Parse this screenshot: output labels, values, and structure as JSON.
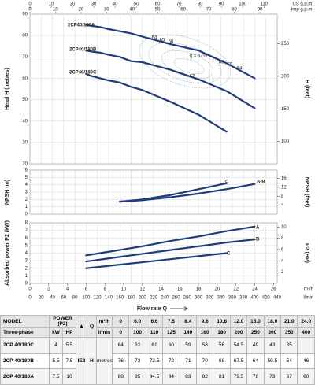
{
  "x_axis": {
    "label": "Flow rate Q",
    "unit": "l/min",
    "lim": [
      0,
      440
    ],
    "ticks": [
      0,
      20,
      40,
      60,
      80,
      100,
      120,
      140,
      160,
      180,
      200,
      220,
      240,
      260,
      280,
      300,
      320,
      340,
      360,
      380,
      400,
      420,
      440
    ],
    "unit2": "m³/h",
    "lim2": [
      0,
      26.4
    ],
    "ticks2": [
      0,
      2,
      4,
      6,
      8,
      10,
      12,
      14,
      16,
      18,
      20,
      22,
      24,
      26
    ]
  },
  "chart_data": [
    {
      "type": "line",
      "y_label": "Head H (metres)",
      "y2_label": "H (feet)",
      "x": [
        100,
        110,
        125,
        140,
        160,
        180,
        200,
        250,
        300,
        350,
        400
      ],
      "ylim": [
        20,
        90
      ],
      "yticks": [
        20,
        30,
        40,
        50,
        60,
        70,
        80,
        90
      ],
      "y2lim": [
        65.6,
        295.3
      ],
      "y2ticks": [
        100,
        150,
        200,
        250
      ],
      "grid": true,
      "top_axes": [
        {
          "unit": "US g.p.m.",
          "lim": [
            0,
            116.2
          ],
          "ticks": [
            0,
            10,
            20,
            30,
            40,
            50,
            60,
            70,
            80,
            90,
            100,
            110
          ]
        },
        {
          "unit": "Imp g.p.m.",
          "lim": [
            0,
            96.8
          ],
          "ticks": [
            0,
            10,
            20,
            30,
            40,
            50,
            60,
            70,
            80,
            90
          ]
        }
      ],
      "series": [
        {
          "name": "2CP40/180A",
          "color": "#1d3c78",
          "values": [
            85,
            84.5,
            84,
            83,
            82,
            81,
            79.5,
            76,
            73,
            67,
            60
          ]
        },
        {
          "name": "2CP40/180B",
          "color": "#1d3c78",
          "values": [
            73,
            72.5,
            72,
            71,
            70,
            68,
            67.5,
            64,
            59.5,
            54,
            46
          ]
        },
        {
          "name": "2CP40/180C",
          "color": "#1d3c78",
          "values": [
            62,
            61,
            60,
            59,
            58,
            56,
            54.5,
            49,
            43,
            35,
            null
          ]
        }
      ],
      "annotations": [
        "64",
        "65",
        "66",
        "η = 67%",
        "66",
        "65",
        "64",
        "67"
      ]
    },
    {
      "type": "line",
      "y_label": "NPSH (m)",
      "y2_label": "NPSH (feet)",
      "x": [
        160,
        200,
        250,
        300,
        350,
        400
      ],
      "ylim": [
        0,
        6
      ],
      "yticks": [
        0,
        1,
        2,
        3,
        4,
        5,
        6
      ],
      "y2lim": [
        0,
        19.7
      ],
      "y2ticks": [
        4,
        8,
        12,
        16
      ],
      "grid": true,
      "series": [
        {
          "name": "C",
          "color": "#1d3c78",
          "values": [
            1.7,
            2.0,
            2.6,
            3.4,
            4.2,
            null
          ]
        },
        {
          "name": "A-B",
          "color": "#1d3c78",
          "values": [
            1.7,
            1.9,
            2.3,
            2.8,
            3.4,
            4.1
          ]
        }
      ]
    },
    {
      "type": "line",
      "y_label": "Absorbed power P2 (kW)",
      "y2_label": "P2 (HP)",
      "x": [
        100,
        150,
        200,
        250,
        300,
        350,
        400
      ],
      "ylim": [
        0,
        8
      ],
      "yticks": [
        0,
        1,
        2,
        3,
        4,
        5,
        6,
        7,
        8
      ],
      "y2lim": [
        0,
        10.73
      ],
      "y2ticks": [
        2,
        4,
        6,
        8,
        10
      ],
      "grid": true,
      "series": [
        {
          "name": "A",
          "color": "#1d3c78",
          "values": [
            3.7,
            4.3,
            4.9,
            5.6,
            6.2,
            6.9,
            7.5
          ]
        },
        {
          "name": "B",
          "color": "#1d3c78",
          "values": [
            2.9,
            3.4,
            3.9,
            4.4,
            4.9,
            5.4,
            5.8
          ]
        },
        {
          "name": "C",
          "color": "#1d3c78",
          "values": [
            2.0,
            2.4,
            2.8,
            3.2,
            3.6,
            4.0,
            null
          ]
        }
      ]
    }
  ],
  "table": {
    "model": "MODEL",
    "three_phase": "Three-phase",
    "power": "POWER (P2)",
    "kw": "kW",
    "hp": "HP",
    "ie_mark": "▲",
    "q": "Q",
    "q_unit1": "m³/h",
    "q_unit2": "l/min",
    "h": "H",
    "h_unit": "metres",
    "ie": "IE3",
    "q1": [
      "0",
      "6.0",
      "6.6",
      "7.5",
      "8.4",
      "9.6",
      "10.8",
      "12.0",
      "15.0",
      "18.0",
      "21.0",
      "24.0"
    ],
    "q2": [
      "0",
      "100",
      "110",
      "125",
      "140",
      "160",
      "180",
      "200",
      "250",
      "300",
      "350",
      "400"
    ],
    "rows": [
      {
        "model": "2CP 40/180C",
        "kw": "4",
        "hp": "5.5",
        "h": [
          "64",
          "62",
          "61",
          "60",
          "59",
          "58",
          "56",
          "54.5",
          "49",
          "43",
          "35",
          null
        ]
      },
      {
        "model": "2CP 40/180B",
        "kw": "5.5",
        "hp": "7.5",
        "h": [
          "76",
          "73",
          "72.5",
          "72",
          "71",
          "70",
          "68",
          "67.5",
          "64",
          "59.5",
          "54",
          "46"
        ]
      },
      {
        "model": "2CP 40/180A",
        "kw": "7.5",
        "hp": "10",
        "h": [
          "88",
          "85",
          "84.5",
          "84",
          "83",
          "82",
          "81",
          "79.5",
          "76",
          "73",
          "67",
          "60"
        ]
      }
    ]
  }
}
